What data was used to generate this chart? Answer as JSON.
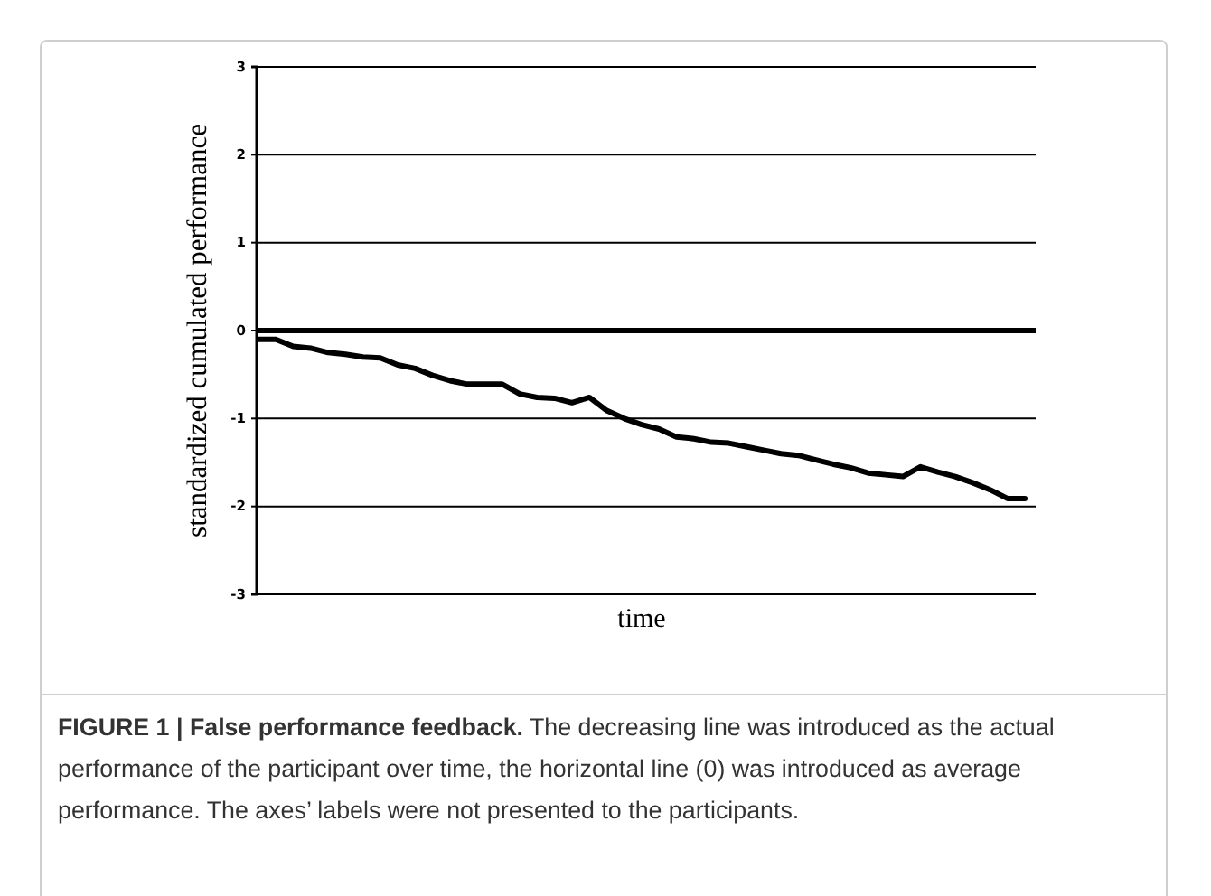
{
  "chart_data": {
    "type": "line",
    "title": "FIGURE 1 | False performance feedback.",
    "annotations": [
      "The decreasing line was introduced as the actual performance of the participant over time, the horizontal line (0) was introduced as average performance. The axes’ labels were not presented to the participants."
    ],
    "xlabel": "time",
    "ylabel": "standardized cumulated performance",
    "categories": [
      null,
      null,
      null,
      null,
      null,
      null,
      null,
      null,
      null,
      null,
      null,
      null,
      null,
      null,
      null,
      null,
      null,
      null,
      null,
      null,
      null,
      null,
      null,
      null,
      null,
      null,
      null,
      null,
      null,
      null,
      null,
      null,
      null,
      null,
      null,
      null,
      null,
      null,
      null,
      null,
      null,
      null,
      null,
      null,
      null
    ],
    "series": [
      {
        "color": "#000000",
        "values": [
          -0.1,
          -0.1,
          -0.18,
          -0.2,
          -0.25,
          -0.27,
          -0.3,
          -0.31,
          -0.39,
          -0.43,
          -0.51,
          -0.57,
          -0.61,
          -0.61,
          -0.61,
          -0.72,
          -0.76,
          -0.77,
          -0.82,
          -0.76,
          -0.91,
          -1.0,
          -1.07,
          -1.12,
          -1.21,
          -1.23,
          -1.27,
          -1.28,
          -1.32,
          -1.36,
          -1.4,
          -1.42,
          -1.47,
          -1.52,
          -1.56,
          -1.62,
          -1.64,
          -1.66,
          -1.55,
          -1.61,
          -1.66,
          -1.73,
          -1.81,
          -1.91,
          -1.91
        ]
      }
    ],
    "ylim": [
      -3,
      3
    ],
    "yticks": [
      -3,
      -2,
      -1,
      0,
      1,
      2,
      3
    ],
    "grid": "y",
    "ref_lines": [
      {
        "axis": "y",
        "value": 0,
        "color": "#000000"
      }
    ],
    "marker": "none",
    "line_style": "solid"
  }
}
